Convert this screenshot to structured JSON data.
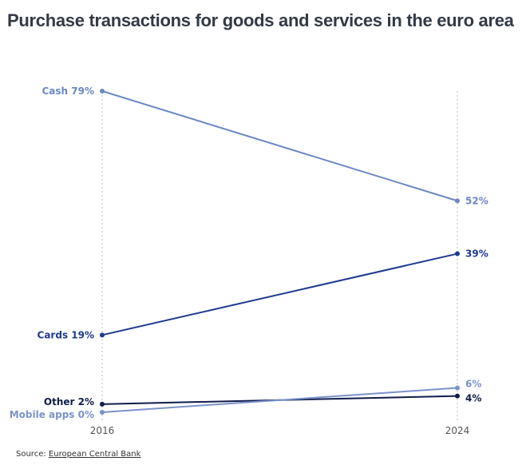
{
  "chart_data": {
    "type": "line",
    "title": "Purchase transactions for goods and services in the euro area",
    "xlabel": "",
    "ylabel": "",
    "x": [
      "2016",
      "2024"
    ],
    "ylim": [
      0,
      79
    ],
    "grid": false,
    "series": [
      {
        "name": "Cash",
        "values": [
          79,
          52
        ],
        "color": "#6b87c4",
        "start_label": "Cash 79%",
        "end_label": "52%",
        "label_weight": "bold"
      },
      {
        "name": "Cards",
        "values": [
          19,
          39
        ],
        "color": "#1d3a8e",
        "start_label": "Cards 19%",
        "end_label": "39%",
        "label_weight": "bold"
      },
      {
        "name": "Other",
        "values": [
          2,
          4
        ],
        "color": "#101d4a",
        "start_label": "Other 2%",
        "end_label": "4%",
        "label_weight": "bold"
      },
      {
        "name": "Mobile apps",
        "values": [
          0,
          6
        ],
        "color": "#7b92cc",
        "start_label": "Mobile apps 0%",
        "end_label": "6%",
        "label_weight": "bold"
      }
    ]
  },
  "source": {
    "prefix": "Source: ",
    "link_text": "European Central Bank"
  }
}
